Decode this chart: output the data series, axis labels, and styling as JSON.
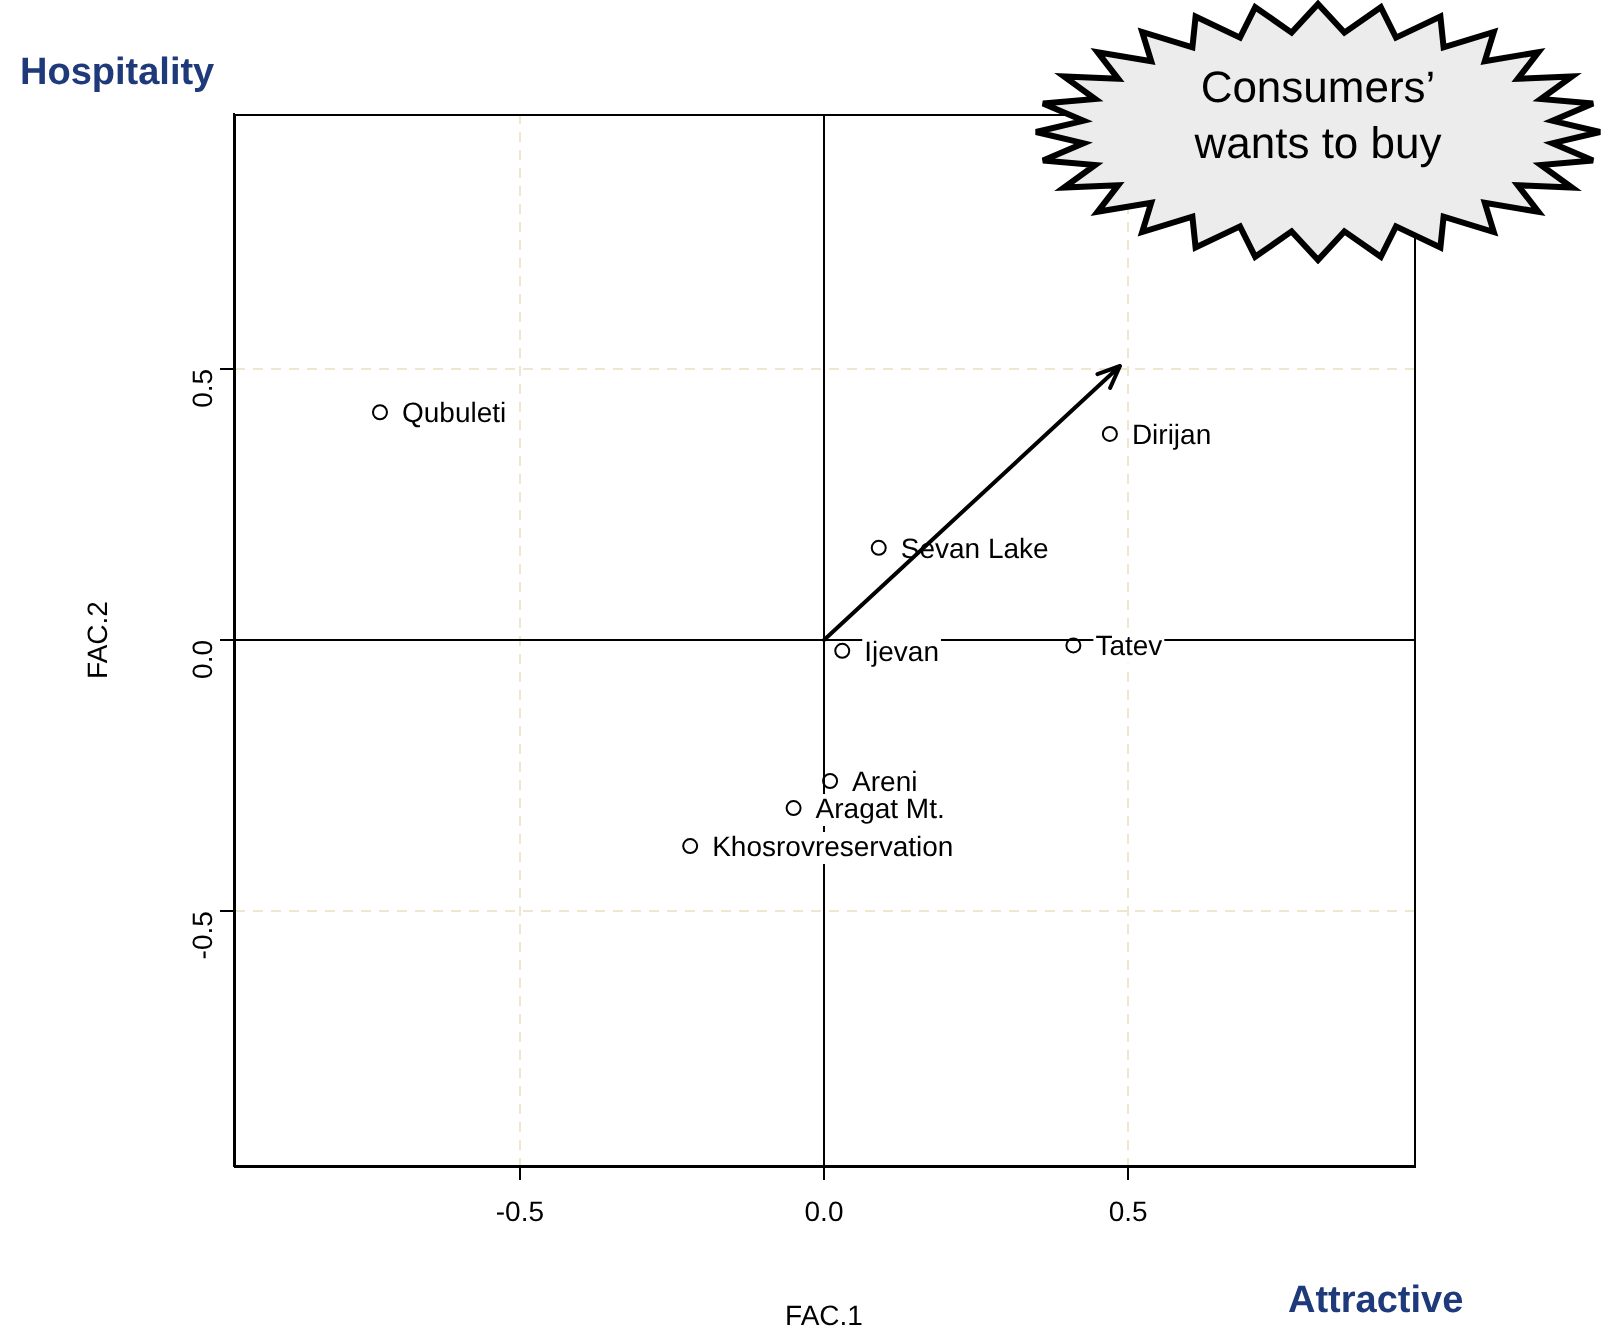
{
  "chart_data": {
    "type": "scatter",
    "xlabel": "FAC.1",
    "ylabel": "FAC.2",
    "xlim": [
      -0.97,
      0.97
    ],
    "ylim": [
      -0.97,
      0.97
    ],
    "xticks": [
      -0.5,
      {
        "value": 0,
        "label": "0.0"
      },
      0.5
    ],
    "yticks": [
      -0.5,
      {
        "value": 0,
        "label": "0.0"
      },
      0.5
    ],
    "grid": true,
    "marker": "circle",
    "annotations": [
      "Hospitality",
      "Attractive",
      "Consumers’ wants to buy"
    ],
    "series": [
      {
        "name": "Qubuleti",
        "color": "#000000",
        "x": [
          -0.73
        ],
        "values": [
          0.42
        ]
      },
      {
        "name": "Dirijan",
        "color": "#000000",
        "x": [
          0.47
        ],
        "values": [
          0.38
        ]
      },
      {
        "name": "Sevan Lake",
        "color": "#000000",
        "x": [
          0.09
        ],
        "values": [
          0.17
        ]
      },
      {
        "name": "Ijevan",
        "color": "#000000",
        "x": [
          0.03
        ],
        "values": [
          -0.02
        ]
      },
      {
        "name": "Tatev",
        "color": "#000000",
        "x": [
          0.41
        ],
        "values": [
          -0.01
        ]
      },
      {
        "name": "Areni",
        "color": "#000000",
        "x": [
          0.01
        ],
        "values": [
          -0.26
        ]
      },
      {
        "name": "Aragat Mt.",
        "color": "#000000",
        "x": [
          -0.05
        ],
        "values": [
          -0.31
        ]
      },
      {
        "name": "Khosrovreservation",
        "color": "#000000",
        "x": [
          -0.22
        ],
        "values": [
          -0.38
        ]
      }
    ]
  }
}
